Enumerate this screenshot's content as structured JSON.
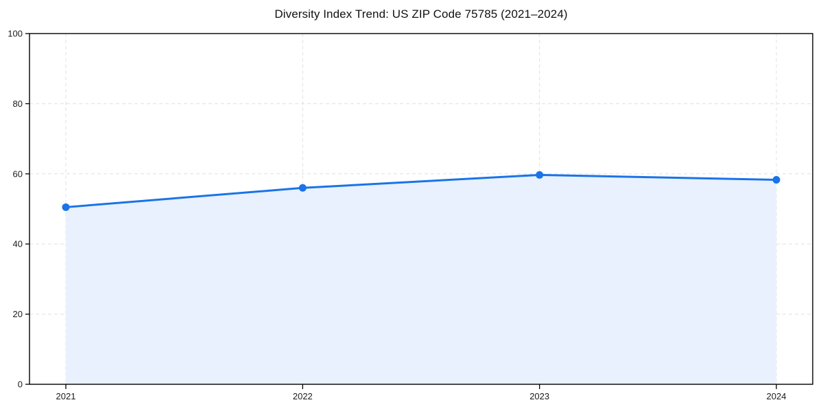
{
  "chart_data": {
    "type": "area",
    "title": "Diversity Index Trend: US ZIP Code 75785 (2021–2024)",
    "series_name": "Diversity Index",
    "categories": [
      "2021",
      "2022",
      "2023",
      "2024"
    ],
    "values": [
      50.5,
      56.0,
      59.7,
      58.3
    ],
    "xlabel": "",
    "ylabel": "",
    "ylim": [
      0,
      100
    ],
    "yticks": [
      0,
      20,
      40,
      60,
      80,
      100
    ],
    "grid": true,
    "grid_style": "dashed",
    "legend_position": "none",
    "markers": true,
    "colors": {
      "line": "#1a73e8",
      "marker": "#1a73e8",
      "fill": "#e8f1fd",
      "grid": "#e0e0e0",
      "axis": "#000000",
      "tick_label": "#1a1a1a",
      "title": "#111111",
      "background": "#ffffff"
    }
  }
}
